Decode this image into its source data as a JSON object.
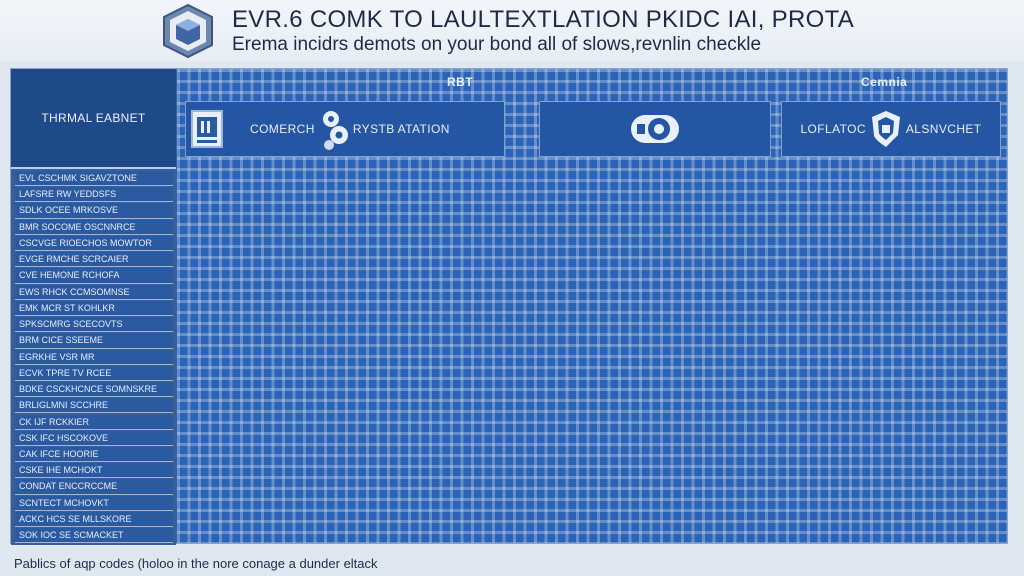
{
  "header": {
    "title": "EVR.6 COMK TO LAULTEXTLATION PKIDC IAI, PROTA",
    "subtitle": "Erema incidrs demots on your bond all of slows,revnlin checkle",
    "logo_icon": "cube-shield-icon"
  },
  "checklist": {
    "label_column_header": "THRMAL EABNET",
    "row_labels": [
      "EVL CSCHMK SIGAVZTONE",
      "LAFSRE RW YEDDSFS",
      "SDLK OCEE MRKOSVE",
      "BMR SOCOME OSCNNRCE",
      "CSCVGE RIOECHOS MOWTOR",
      "EVGE RMCHE SCRCAIER",
      "CVE HEMONE RCHOFA",
      "EWS RHCK CCMSOMNSE",
      "EMK MCR ST KOHLKR",
      "SPKSCMRG SCECOVTS",
      "BRM CICE SSEEME",
      "EGRKHE VSR MR",
      "ECVK TPRE TV RCEE",
      "BDKE CSCKHCNCE SOMNSKRE",
      "BRLIGLMNI SCCHRE",
      "CK IJF RCKKIER",
      "CSK IFC HSCOKOVE",
      "CAK IFCE HOORIE",
      "CSKE IHE MCHOKT",
      "CONDAT ENCCRCCME",
      "SCNTECT MCHOVKT",
      "ACKC HCS SE MLLSKORE",
      "SOK IOC SE SCMACKET"
    ],
    "group_labels": [
      "RBT",
      "Cemnia"
    ],
    "modules": [
      {
        "label": "",
        "icon": "device-icon"
      },
      {
        "label": "COMERCH",
        "icon": "gear-stack-icon"
      },
      {
        "label": "RYSTB ATATION",
        "icon": ""
      },
      {
        "label": "",
        "icon": "disc-drive-icon"
      },
      {
        "label": "LOFLATOC",
        "icon": "shield-badge-icon"
      },
      {
        "label": "ALSNVCHET",
        "icon": ""
      }
    ]
  },
  "footer": {
    "note": "Pablics of aqp codes (holoo in the nore conage a dunder eltack"
  },
  "colors": {
    "grid_blue": "#2b64b6",
    "label_blue": "#2c5aa0",
    "header_blue": "#1f4a8a",
    "page_bg": "#dfe8f1"
  }
}
